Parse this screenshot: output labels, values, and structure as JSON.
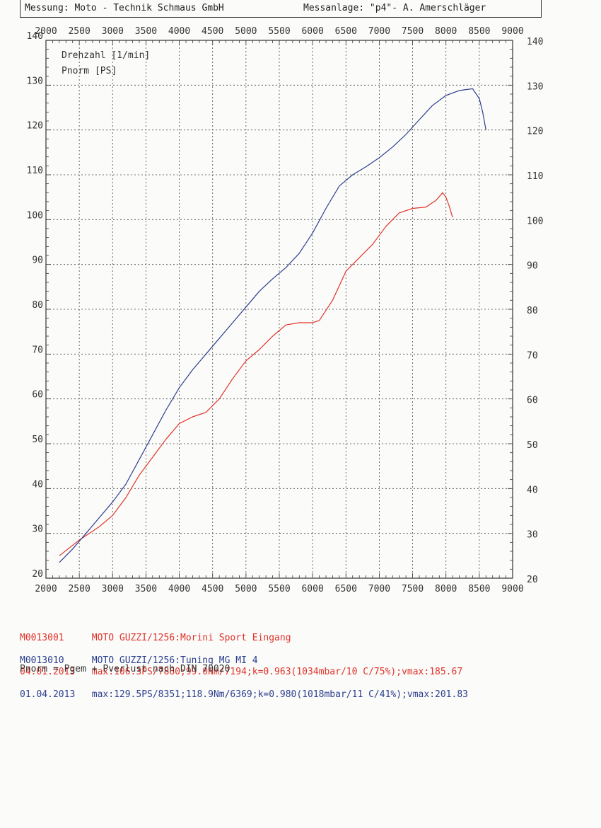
{
  "header": {
    "left": "Messung: Moto - Technik Schmaus GmbH",
    "right": "Messanlage: \"p4\"- A. Amerschläger"
  },
  "chart_data": {
    "type": "line",
    "x_label": "Drehzahl [1/min]",
    "y_label": "Pnorm [PS]",
    "xlim": [
      2000,
      9000
    ],
    "ylim": [
      20,
      140
    ],
    "x_ticks": [
      "2000",
      "2500",
      "3000",
      "3500",
      "4000",
      "4500",
      "5000",
      "5500",
      "6000",
      "6500",
      "7000",
      "7500",
      "8000",
      "8500",
      "9000"
    ],
    "y_ticks": [
      "20",
      "30",
      "40",
      "50",
      "60",
      "70",
      "80",
      "90",
      "100",
      "110",
      "120",
      "130",
      "140"
    ],
    "grid": true,
    "series": [
      {
        "name": "M0013001",
        "color": "#e0322a",
        "points": [
          [
            2200,
            25
          ],
          [
            2500,
            28.5
          ],
          [
            2800,
            31.5
          ],
          [
            3000,
            34
          ],
          [
            3200,
            38
          ],
          [
            3400,
            43
          ],
          [
            3600,
            47
          ],
          [
            3800,
            51
          ],
          [
            4000,
            54.5
          ],
          [
            4200,
            56
          ],
          [
            4400,
            57
          ],
          [
            4600,
            60
          ],
          [
            4800,
            64.5
          ],
          [
            5000,
            68.5
          ],
          [
            5200,
            71
          ],
          [
            5400,
            74
          ],
          [
            5600,
            76.5
          ],
          [
            5800,
            77
          ],
          [
            6000,
            77
          ],
          [
            6100,
            77.5
          ],
          [
            6300,
            82
          ],
          [
            6500,
            88.5
          ],
          [
            6700,
            91.5
          ],
          [
            6900,
            94.5
          ],
          [
            7100,
            98.5
          ],
          [
            7300,
            101.5
          ],
          [
            7500,
            102.5
          ],
          [
            7700,
            102.8
          ],
          [
            7850,
            104.3
          ],
          [
            7950,
            106
          ],
          [
            8000,
            105
          ],
          [
            8050,
            103
          ],
          [
            8100,
            100.5
          ]
        ]
      },
      {
        "name": "M0013010",
        "color": "#2c3f8f",
        "points": [
          [
            2200,
            23.5
          ],
          [
            2400,
            26.5
          ],
          [
            2600,
            30
          ],
          [
            2800,
            33.5
          ],
          [
            3000,
            37
          ],
          [
            3200,
            41
          ],
          [
            3400,
            46.5
          ],
          [
            3600,
            52
          ],
          [
            3800,
            57.5
          ],
          [
            4000,
            62.5
          ],
          [
            4200,
            66.5
          ],
          [
            4400,
            70
          ],
          [
            4600,
            73.5
          ],
          [
            4800,
            77
          ],
          [
            5000,
            80.5
          ],
          [
            5200,
            84
          ],
          [
            5400,
            86.8
          ],
          [
            5600,
            89.3
          ],
          [
            5800,
            92.5
          ],
          [
            6000,
            97
          ],
          [
            6200,
            102.5
          ],
          [
            6400,
            107.5
          ],
          [
            6600,
            110
          ],
          [
            6800,
            111.8
          ],
          [
            7000,
            113.8
          ],
          [
            7200,
            116.2
          ],
          [
            7400,
            119
          ],
          [
            7600,
            122.3
          ],
          [
            7800,
            125.5
          ],
          [
            8000,
            127.7
          ],
          [
            8200,
            128.8
          ],
          [
            8400,
            129.2
          ],
          [
            8500,
            127
          ],
          [
            8550,
            124
          ],
          [
            8600,
            120
          ]
        ]
      }
    ]
  },
  "legend": [
    {
      "id": "M0013001",
      "date": "04.01.2013",
      "title": "MOTO GUZZI/1256:Morini Sport Eingang",
      "details": "max:106.3PS/7880;99.0Nm/7194;k=0.963(1034mbar/10 C/75%);vmax:185.67",
      "color": "#e0322a"
    },
    {
      "id": "M0013010",
      "date": "01.04.2013",
      "title": "MOTO GUZZI/1256:Tuning MG MI 4",
      "details": "max:129.5PS/8351;118.9Nm/6369;k=0.980(1018mbar/11 C/41%);vmax:201.83",
      "color": "#2c3f8f"
    }
  ],
  "footnote": "Pnorm = Pgem + Pverlust nach DIN 70020"
}
